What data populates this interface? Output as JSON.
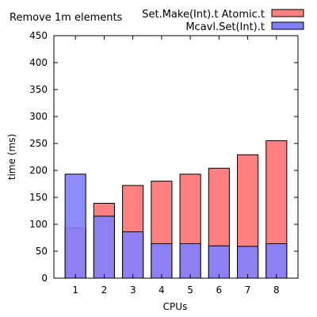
{
  "chart_data": {
    "type": "bar",
    "title": "Remove 1m elements",
    "xlabel": "CPUs",
    "ylabel": "time (ms)",
    "ylim": [
      0,
      450
    ],
    "yticks": [
      0,
      50,
      100,
      150,
      200,
      250,
      300,
      350,
      400,
      450
    ],
    "categories": [
      "1",
      "2",
      "3",
      "4",
      "5",
      "6",
      "7",
      "8"
    ],
    "legend_position": "top-right",
    "grid": false,
    "series": [
      {
        "name": "Set.Make(Int).t Atomic.t",
        "color": "#ff8080",
        "values": [
          93,
          139,
          172,
          180,
          193,
          204,
          229,
          255
        ]
      },
      {
        "name": "Mcavl.Set(Int).t",
        "color": "#8080ff",
        "values": [
          193,
          115,
          86,
          64,
          64,
          60,
          59,
          64
        ]
      }
    ]
  }
}
